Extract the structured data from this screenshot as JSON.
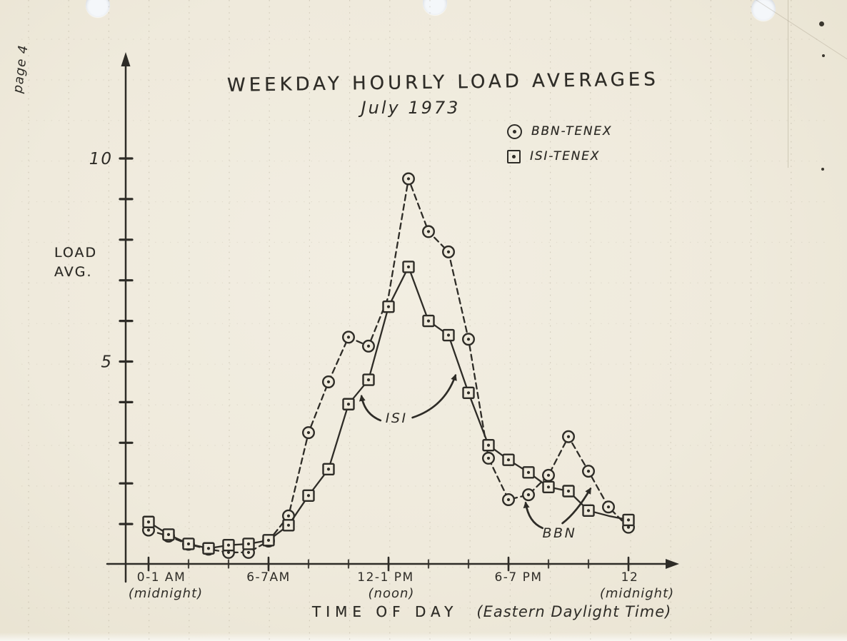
{
  "page": {
    "corner_label": "page 4",
    "paper_color": "#efeadc",
    "ink_color": "#2e2c27"
  },
  "legend": {
    "items": [
      {
        "label": "BBN-TENEX",
        "marker": "circle-dot"
      },
      {
        "label": "ISI-TENEX",
        "marker": "square-dot"
      }
    ]
  },
  "chart_data": {
    "type": "line",
    "title": "WEEKDAY HOURLY LOAD AVERAGES",
    "subtitle": "July 1973",
    "xlabel_main": "TIME OF DAY",
    "xlabel_note": "(Eastern Daylight Time)",
    "ylabel_lines": [
      "LOAD",
      "AVG."
    ],
    "x_hours": [
      0,
      1,
      2,
      3,
      4,
      5,
      6,
      7,
      8,
      9,
      10,
      11,
      12,
      13,
      14,
      15,
      16,
      17,
      18,
      19,
      20,
      21,
      22,
      23,
      24
    ],
    "series": [
      {
        "name": "BBN-TENEX",
        "marker": "circle-dot",
        "line": "dashed",
        "values": [
          0.85,
          0.7,
          0.5,
          0.38,
          0.3,
          0.3,
          0.58,
          1.2,
          3.25,
          4.5,
          5.6,
          5.38,
          6.6,
          9.5,
          8.2,
          7.7,
          5.55,
          2.62,
          1.6,
          1.72,
          2.2,
          3.15,
          2.3,
          1.42,
          0.92
        ],
        "marker_skip": [
          12
        ]
      },
      {
        "name": "ISI-TENEX",
        "marker": "square-dot",
        "line": "solid",
        "values": [
          1.05,
          0.74,
          0.51,
          0.4,
          0.48,
          0.51,
          0.6,
          0.97,
          1.7,
          2.35,
          3.95,
          4.55,
          6.35,
          7.33,
          6.0,
          5.65,
          4.23,
          2.94,
          2.58,
          2.27,
          1.91,
          1.81,
          1.33,
          1.2,
          1.1
        ],
        "marker_skip": [
          23
        ]
      }
    ],
    "xticks": [
      {
        "hour": 0,
        "label": "0-1 AM",
        "sublabel": "(midnight)"
      },
      {
        "hour": 6,
        "label": "6-7AM",
        "sublabel": ""
      },
      {
        "hour": 12,
        "label": "12-1 PM",
        "sublabel": "(noon)"
      },
      {
        "hour": 18,
        "label": "6-7 PM",
        "sublabel": ""
      },
      {
        "hour": 24,
        "label": "12",
        "sublabel": "(midnight)"
      }
    ],
    "xticks_minor_every_hours": 2,
    "yticks_labeled": [
      {
        "value": 10,
        "label": "10"
      },
      {
        "value": 5,
        "label": "5"
      }
    ],
    "yticks_minor": [
      1,
      2,
      3,
      4,
      5,
      6,
      7,
      8,
      9,
      10
    ],
    "xlim": [
      0,
      24
    ],
    "ylim": [
      0,
      11
    ],
    "grid": "dotted graph paper",
    "legend_position": "upper right",
    "annotations": [
      {
        "text": "ISI",
        "at": {
          "hour": 12.4,
          "load": 3.62
        },
        "arrows": [
          {
            "from": [
              11.6,
              3.55
            ],
            "ctrl": [
              10.8,
              3.71
            ],
            "to": [
              10.65,
              4.15
            ]
          },
          {
            "from": [
              13.2,
              3.62
            ],
            "ctrl": [
              14.8,
              3.88
            ],
            "to": [
              15.35,
              4.66
            ]
          }
        ]
      },
      {
        "text": "BBN",
        "at": {
          "hour": 20.55,
          "load": 0.79
        },
        "arrows": [
          {
            "from": [
              19.7,
              0.9
            ],
            "ctrl": [
              19.0,
              1.05
            ],
            "to": [
              18.86,
              1.52
            ]
          },
          {
            "from": [
              20.7,
              1.02
            ],
            "ctrl": [
              21.4,
              1.28
            ],
            "to": [
              22.1,
              1.87
            ]
          }
        ]
      }
    ]
  }
}
